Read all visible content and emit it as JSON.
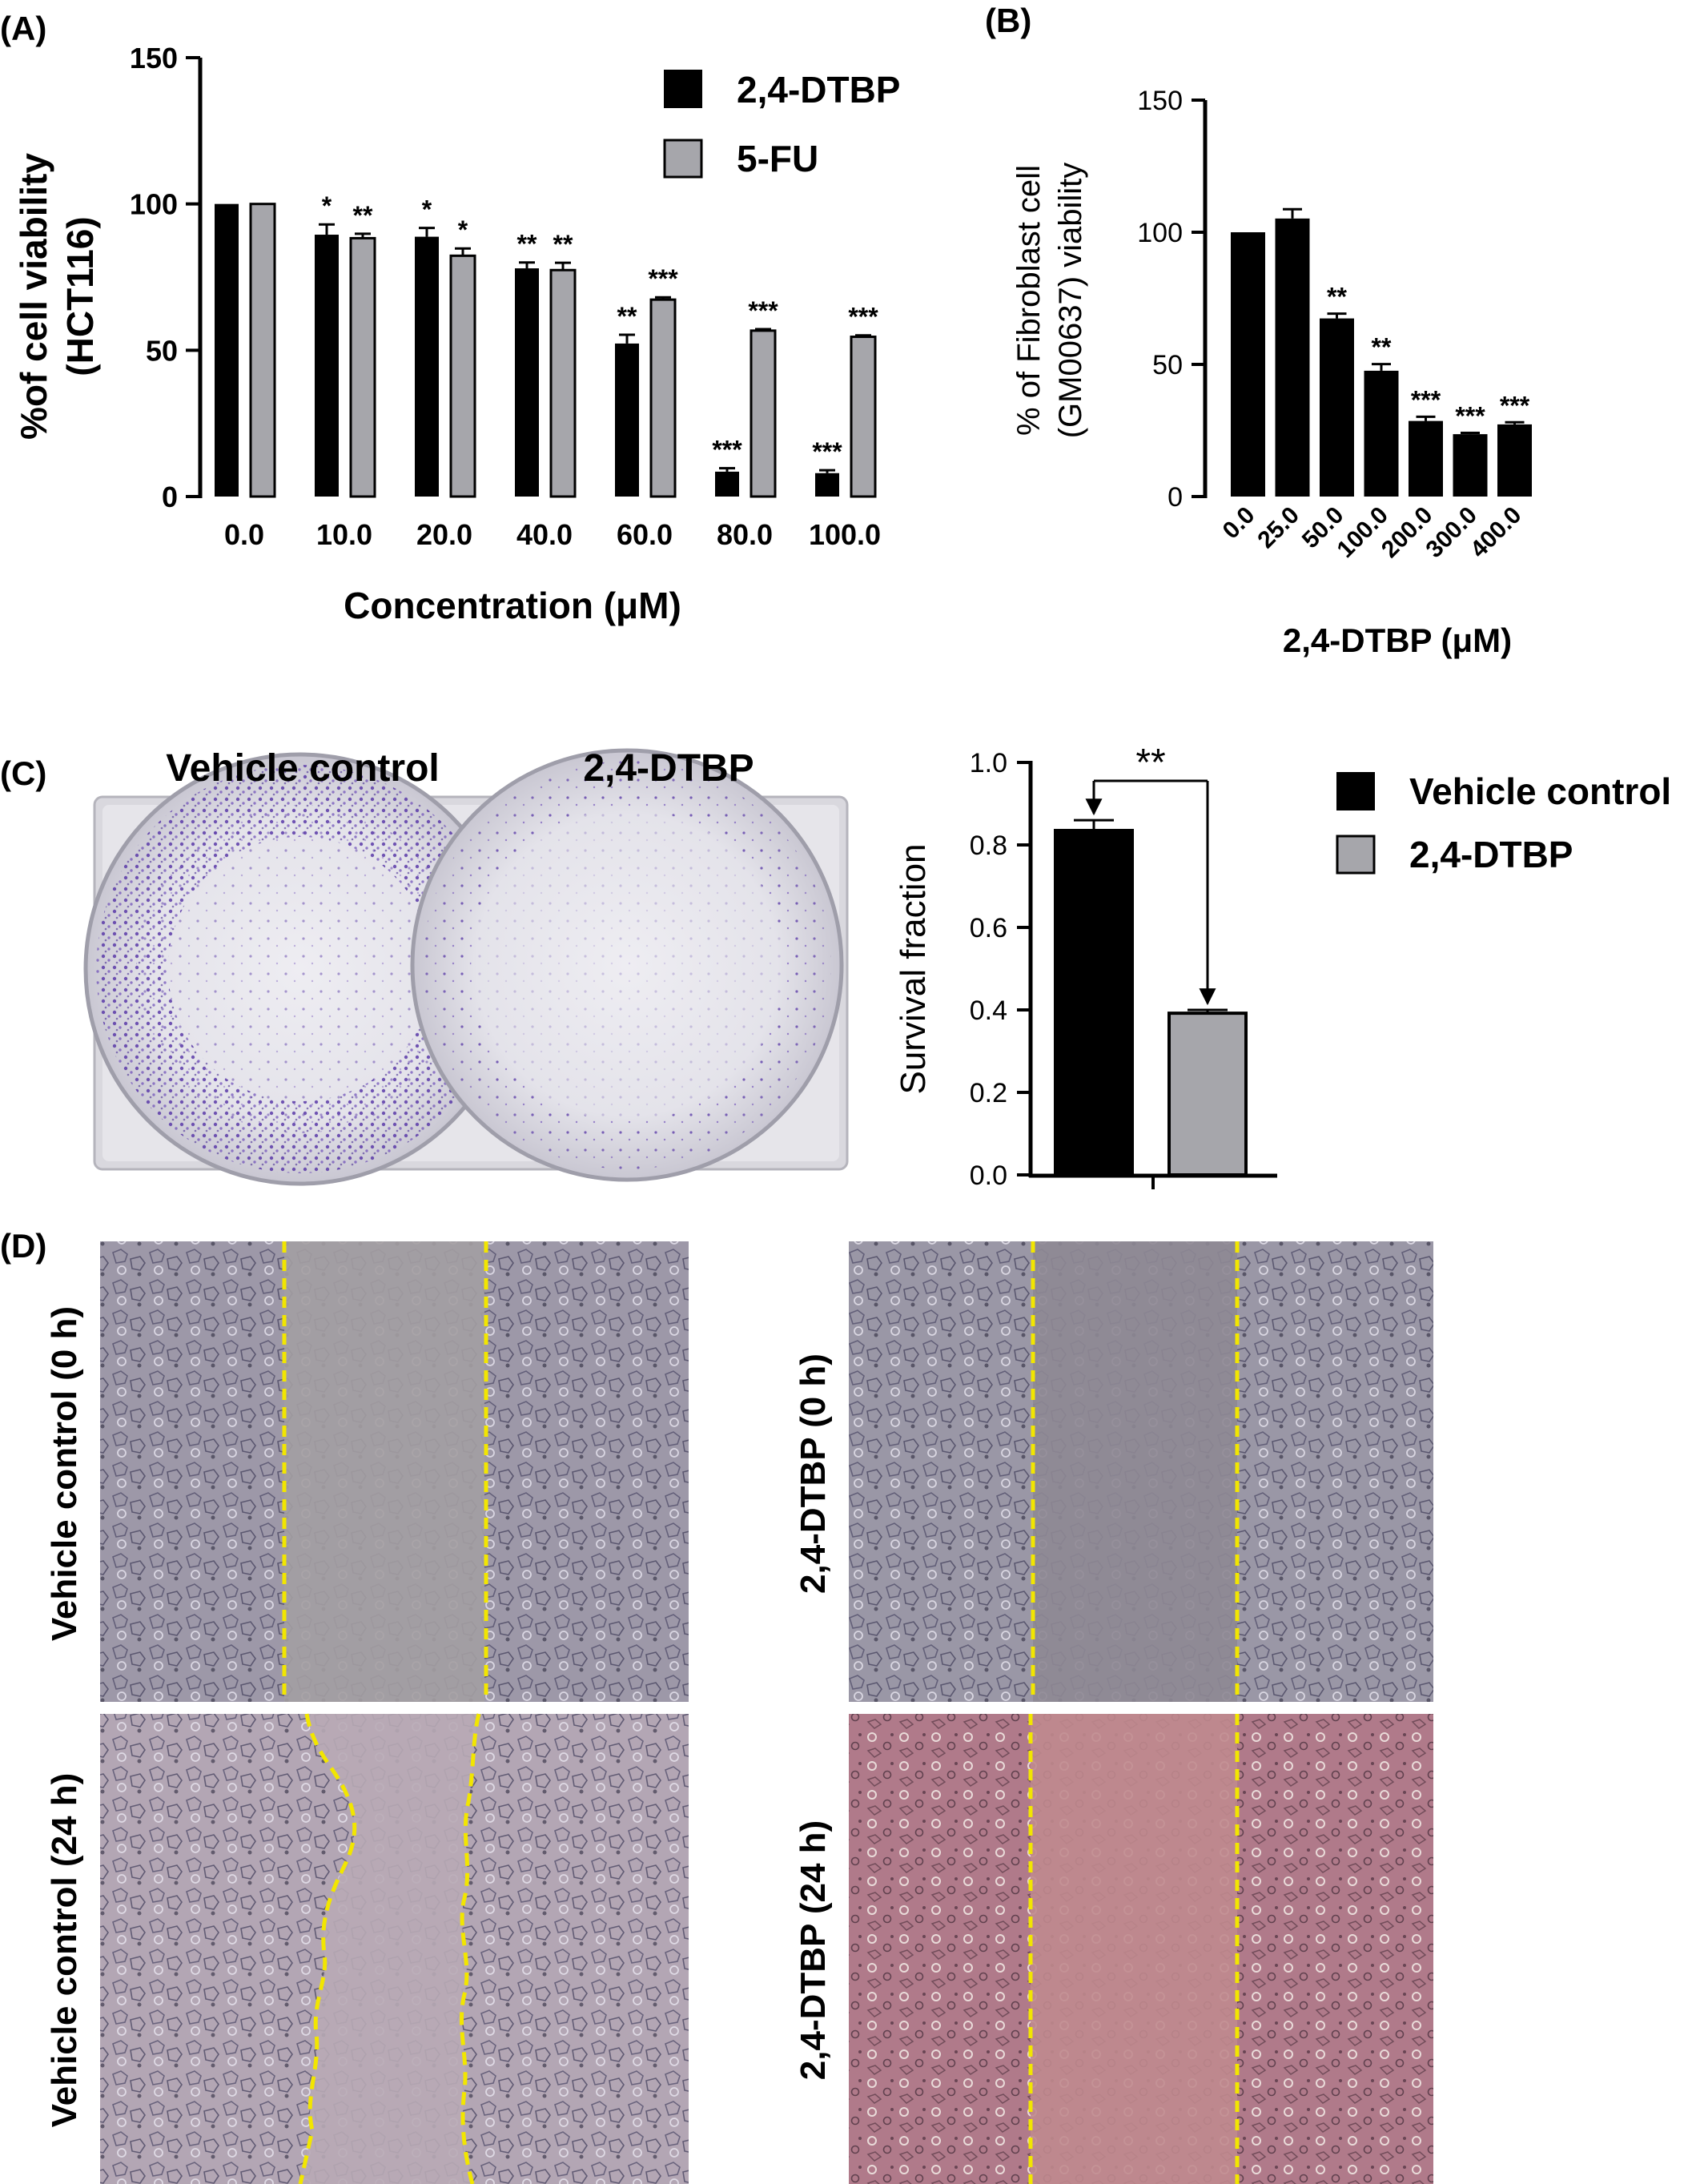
{
  "panels": {
    "a": "(A)",
    "b": "(B)",
    "c": "(C)",
    "d": "(D)"
  },
  "colors": {
    "dtbp_bar": "#000000",
    "fu_bar": "#a6a6ab",
    "dashed_line": "#f2e600",
    "stain": "#5b3aa8"
  },
  "chart_data": [
    {
      "id": "A",
      "type": "bar",
      "categories": [
        "0.0",
        "10.0",
        "20.0",
        "40.0",
        "60.0",
        "80.0",
        "100.0"
      ],
      "series": [
        {
          "name": "2,4-DTBP",
          "values": [
            100,
            89.5,
            88.8,
            78,
            52.3,
            8.5,
            8
          ],
          "errors": [
            0,
            3.5,
            3,
            2,
            3,
            1.2,
            1
          ],
          "stars": [
            "",
            "*",
            "*",
            "**",
            "**",
            "***",
            "***"
          ]
        },
        {
          "name": "5-FU",
          "values": [
            100,
            88.3,
            82.3,
            77.4,
            67.3,
            56.7,
            54.6
          ],
          "errors": [
            0,
            1.5,
            2.5,
            2.5,
            0.8,
            0.5,
            0.5
          ],
          "stars": [
            "",
            "**",
            "*",
            "**",
            "***",
            "***",
            "***"
          ]
        }
      ],
      "ylabel": "%of cell viability\n(HCT116)",
      "xlabel": "Concentration (μM)",
      "ylim": [
        0,
        150
      ],
      "yticks": [
        "0",
        "50",
        "100",
        "150"
      ],
      "legend": "top-right",
      "grid": false
    },
    {
      "id": "B",
      "type": "bar",
      "categories": [
        "0.0",
        "25.0",
        "50.0",
        "100.0",
        "200.0",
        "300.0",
        "400.0"
      ],
      "series": [
        {
          "name": "",
          "values": [
            100,
            105.2,
            67.4,
            47.6,
            28.6,
            23.6,
            27.3
          ],
          "errors": [
            0,
            3.5,
            1.8,
            2.5,
            1.6,
            0.5,
            0.8
          ],
          "stars": [
            "",
            "",
            "**",
            "**",
            "***",
            "***",
            "***"
          ]
        }
      ],
      "ylabel": "% of Fibroblast cell\n(GM00637) viability",
      "xlabel": "2,4-DTBP (μM)",
      "ylim": [
        0,
        150
      ],
      "yticks": [
        "0",
        "50",
        "100",
        "150"
      ],
      "grid": false
    },
    {
      "id": "C",
      "type": "bar",
      "categories": [
        "Vehicle control",
        "2,4-DTBP"
      ],
      "values": [
        0.835,
        0.392
      ],
      "errors": [
        0.025,
        0.008
      ],
      "significance": "**",
      "ylabel": "Survival fraction",
      "ylim": [
        0,
        1.0
      ],
      "yticks": [
        "0.0",
        "0.2",
        "0.4",
        "0.6",
        "0.8",
        "1.0"
      ],
      "legend": "right",
      "grid": false
    }
  ],
  "colony_images": {
    "left_label": "Vehicle control",
    "right_label": "2,4-DTBP"
  },
  "wound_images": {
    "top_left": "Vehicle control (0 h)",
    "top_right": "2,4-DTBP (0 h)",
    "bottom_left": "Vehicle control (24 h)",
    "bottom_right": "2,4-DTBP (24 h)"
  }
}
